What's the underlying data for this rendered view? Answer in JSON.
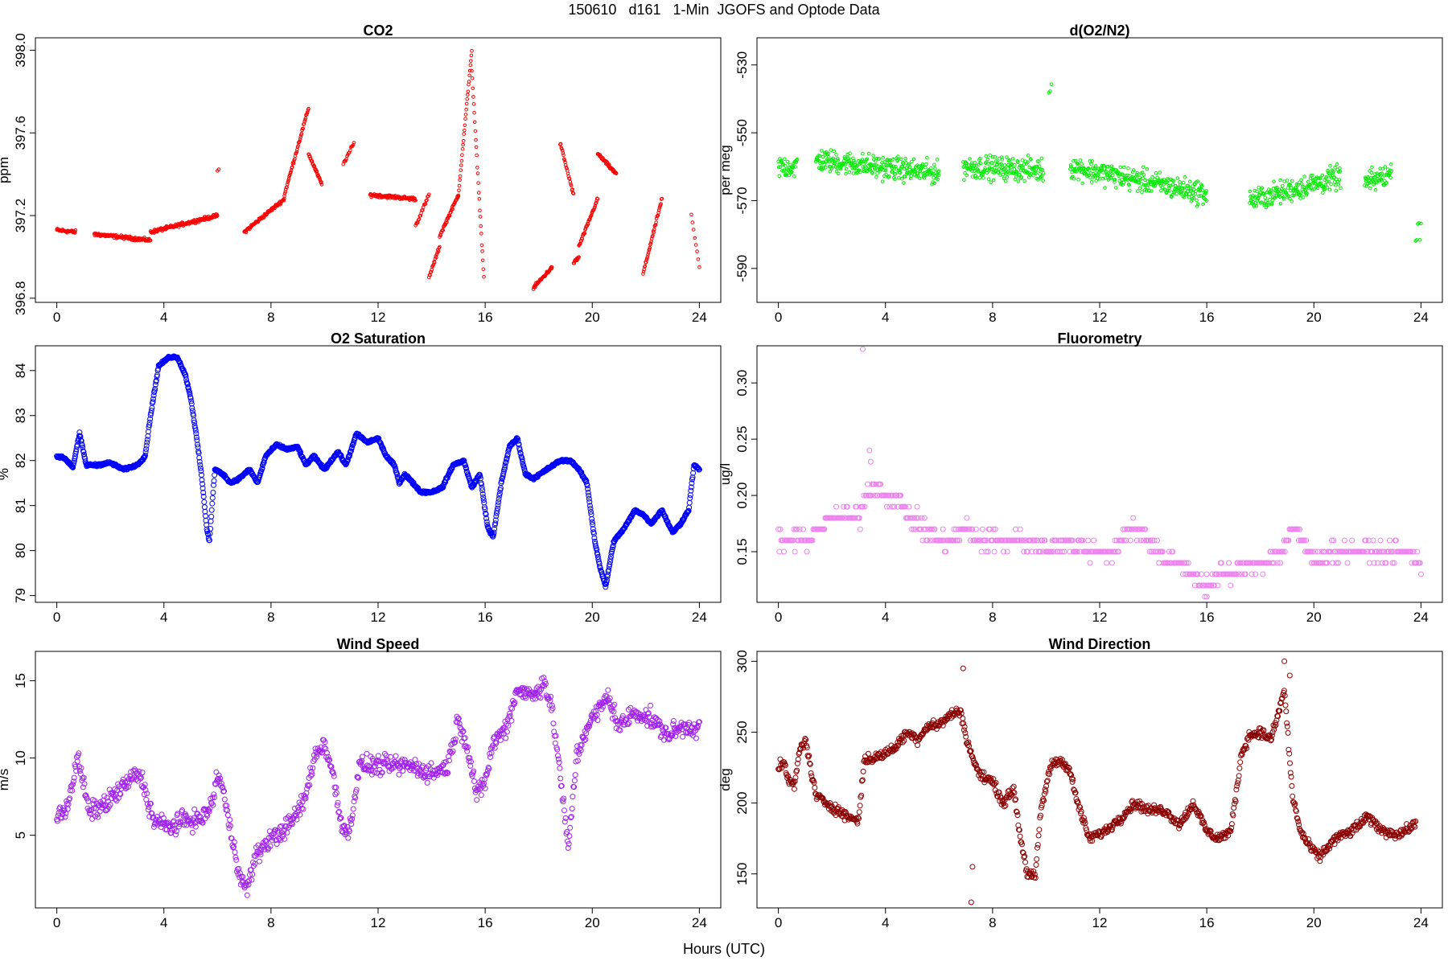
{
  "page": {
    "title": "150610   d161   1-Min  JGOFS and Optode Data",
    "xlabel": "Hours (UTC)"
  },
  "chart_data": [
    {
      "id": "co2",
      "type": "scatter",
      "title": "CO2",
      "ylabel": "ppm",
      "xlim": [
        -0.8,
        24.8
      ],
      "ylim": [
        396.78,
        398.06
      ],
      "xticks": [
        0,
        4,
        8,
        12,
        16,
        20,
        24
      ],
      "xtick_labels": [
        "0",
        "4",
        "8",
        "12",
        "16",
        "20",
        "24"
      ],
      "yticks": [
        396.8,
        397.2,
        397.6,
        398.0
      ],
      "ytick_labels": [
        "396.8",
        "397.2",
        "397.6",
        "398.0"
      ],
      "color": "#ff0000",
      "marker_r": 1.8,
      "jitter": 0.012,
      "segments": [
        {
          "x": [
            0.0,
            0.7
          ],
          "y": [
            397.13,
            397.12
          ],
          "n": 40
        },
        {
          "x": [
            1.4,
            3.5
          ],
          "y": [
            397.11,
            397.08
          ],
          "n": 120
        },
        {
          "x": [
            3.5,
            6.0
          ],
          "y": [
            397.12,
            397.2
          ],
          "n": 150
        },
        {
          "x": [
            6.0,
            6.05
          ],
          "y": [
            397.42,
            397.42
          ],
          "n": 2
        },
        {
          "x": [
            7.0,
            8.5
          ],
          "y": [
            397.12,
            397.28
          ],
          "n": 80
        },
        {
          "x": [
            8.5,
            9.4
          ],
          "y": [
            397.3,
            397.72
          ],
          "n": 50
        },
        {
          "x": [
            9.4,
            9.9
          ],
          "y": [
            397.5,
            397.35
          ],
          "n": 30
        },
        {
          "x": [
            10.7,
            11.1
          ],
          "y": [
            397.45,
            397.55
          ],
          "n": 15
        },
        {
          "x": [
            11.7,
            13.4
          ],
          "y": [
            397.3,
            397.28
          ],
          "n": 100
        },
        {
          "x": [
            13.4,
            13.9
          ],
          "y": [
            397.15,
            397.3
          ],
          "n": 20
        },
        {
          "x": [
            13.9,
            14.3
          ],
          "y": [
            396.9,
            397.05
          ],
          "n": 20
        },
        {
          "x": [
            14.3,
            15.0
          ],
          "y": [
            397.1,
            397.3
          ],
          "n": 40
        },
        {
          "x": [
            15.0,
            15.5
          ],
          "y": [
            397.3,
            398.0
          ],
          "n": 30
        },
        {
          "x": [
            15.5,
            15.95
          ],
          "y": [
            397.9,
            396.9
          ],
          "n": 25
        },
        {
          "x": [
            17.8,
            18.5
          ],
          "y": [
            396.85,
            396.95
          ],
          "n": 40
        },
        {
          "x": [
            18.8,
            19.3
          ],
          "y": [
            397.55,
            397.3
          ],
          "n": 25
        },
        {
          "x": [
            19.3,
            19.5
          ],
          "y": [
            396.97,
            397.0
          ],
          "n": 12
        },
        {
          "x": [
            19.5,
            20.2
          ],
          "y": [
            397.05,
            397.28
          ],
          "n": 40
        },
        {
          "x": [
            20.2,
            20.9
          ],
          "y": [
            397.5,
            397.4
          ],
          "n": 40
        },
        {
          "x": [
            21.9,
            22.6
          ],
          "y": [
            396.92,
            397.28
          ],
          "n": 40
        },
        {
          "x": [
            23.7,
            24.0
          ],
          "y": [
            397.2,
            396.95
          ],
          "n": 8
        }
      ]
    },
    {
      "id": "do2n2",
      "type": "scatter",
      "title": "d(O2/N2)",
      "ylabel": "per meg",
      "xlim": [
        -0.8,
        24.8
      ],
      "ylim": [
        -600,
        -522
      ],
      "xticks": [
        0,
        4,
        8,
        12,
        16,
        20,
        24
      ],
      "xtick_labels": [
        "0",
        "4",
        "8",
        "12",
        "16",
        "20",
        "24"
      ],
      "yticks": [
        -590,
        -570,
        -550,
        -530
      ],
      "ytick_labels": [
        "-590",
        "-570",
        "-550",
        "-530"
      ],
      "color": "#00ee00",
      "marker_r": 1.8,
      "jitter": 5,
      "segments": [
        {
          "x": [
            0.0,
            0.7
          ],
          "y": [
            -560,
            -560
          ],
          "n": 40
        },
        {
          "x": [
            1.4,
            6.0
          ],
          "y": [
            -558,
            -562
          ],
          "n": 280
        },
        {
          "x": [
            6.9,
            9.9
          ],
          "y": [
            -560,
            -561
          ],
          "n": 180
        },
        {
          "x": [
            10.1,
            10.2
          ],
          "y": [
            -537,
            -537
          ],
          "n": 3
        },
        {
          "x": [
            10.9,
            16.0
          ],
          "y": [
            -560,
            -568
          ],
          "n": 300
        },
        {
          "x": [
            17.6,
            21.0
          ],
          "y": [
            -570,
            -563
          ],
          "n": 200
        },
        {
          "x": [
            21.9,
            22.9
          ],
          "y": [
            -565,
            -562
          ],
          "n": 60
        },
        {
          "x": [
            23.8,
            24.0
          ],
          "y": [
            -578,
            -578
          ],
          "n": 6
        }
      ]
    },
    {
      "id": "o2sat",
      "type": "scatter",
      "title": "O2 Saturation",
      "ylabel": "%",
      "xlim": [
        -0.8,
        24.8
      ],
      "ylim": [
        78.85,
        84.55
      ],
      "xticks": [
        0,
        4,
        8,
        12,
        16,
        20,
        24
      ],
      "xtick_labels": [
        "0",
        "4",
        "8",
        "12",
        "16",
        "20",
        "24"
      ],
      "yticks": [
        79,
        80,
        81,
        82,
        83,
        84
      ],
      "ytick_labels": [
        "79",
        "80",
        "81",
        "82",
        "83",
        "84"
      ],
      "color": "#0000ff",
      "marker_r": 3,
      "jitter": 0.04,
      "path": {
        "x": [
          0.0,
          0.3,
          0.6,
          0.85,
          1.1,
          1.5,
          2.0,
          2.5,
          3.0,
          3.3,
          3.5,
          3.8,
          4.2,
          4.5,
          4.8,
          5.0,
          5.2,
          5.4,
          5.6,
          5.7,
          5.9,
          6.2,
          6.5,
          6.8,
          7.2,
          7.5,
          7.8,
          8.2,
          8.6,
          9.0,
          9.3,
          9.6,
          10.0,
          10.5,
          10.8,
          11.2,
          11.6,
          12.0,
          12.3,
          12.6,
          12.8,
          13.0,
          13.3,
          13.6,
          14.0,
          14.4,
          14.8,
          15.2,
          15.5,
          15.8,
          16.1,
          16.3,
          16.6,
          16.9,
          17.2,
          17.5,
          17.8,
          18.3,
          18.8,
          19.2,
          19.5,
          19.8,
          20.1,
          20.3,
          20.5,
          20.8,
          21.2,
          21.6,
          21.9,
          22.2,
          22.6,
          23.0,
          23.3,
          23.6,
          23.8,
          24.0
        ],
        "y": [
          82.1,
          82.05,
          81.85,
          82.6,
          81.9,
          81.9,
          81.95,
          81.8,
          81.9,
          82.1,
          83.0,
          84.1,
          84.3,
          84.3,
          83.9,
          83.4,
          82.6,
          81.7,
          80.5,
          80.2,
          81.8,
          81.7,
          81.5,
          81.6,
          81.8,
          81.5,
          82.1,
          82.35,
          82.25,
          82.3,
          81.9,
          82.1,
          81.8,
          82.2,
          81.9,
          82.6,
          82.4,
          82.5,
          82.1,
          81.9,
          81.5,
          81.7,
          81.5,
          81.3,
          81.3,
          81.4,
          81.9,
          82.0,
          81.4,
          81.7,
          80.5,
          80.3,
          81.5,
          82.3,
          82.5,
          81.7,
          81.6,
          81.8,
          82.0,
          82.0,
          81.8,
          81.5,
          80.2,
          79.6,
          79.2,
          80.2,
          80.5,
          80.9,
          80.8,
          80.6,
          80.9,
          80.4,
          80.6,
          80.9,
          81.9,
          81.8
        ],
        "n": 1440
      }
    },
    {
      "id": "fluor",
      "type": "scatter",
      "title": "Fluorometry",
      "ylabel": "ug/l",
      "xlim": [
        -0.8,
        24.8
      ],
      "ylim": [
        0.105,
        0.333
      ],
      "xticks": [
        0,
        4,
        8,
        12,
        16,
        20,
        24
      ],
      "xtick_labels": [
        "0",
        "4",
        "8",
        "12",
        "16",
        "20",
        "24"
      ],
      "yticks": [
        0.15,
        0.2,
        0.25,
        0.3
      ],
      "ytick_labels": [
        "0.15",
        "0.20",
        "0.25",
        "0.30"
      ],
      "color": "#ee82ee",
      "marker_r": 3,
      "step": 0.01,
      "path": {
        "x": [
          0.0,
          0.5,
          1.0,
          1.5,
          2.0,
          2.5,
          3.0,
          3.3,
          3.6,
          4.0,
          4.3,
          4.6,
          5.0,
          5.4,
          6.0,
          6.5,
          7.0,
          7.5,
          8.0,
          9.0,
          10.0,
          11.0,
          12.0,
          12.6,
          13.0,
          13.6,
          14.0,
          14.5,
          15.0,
          15.5,
          16.0,
          16.5,
          17.0,
          17.5,
          18.0,
          18.8,
          19.2,
          19.6,
          20.0,
          20.6,
          21.0,
          22.0,
          23.0,
          23.6,
          24.0
        ],
        "y": [
          0.16,
          0.16,
          0.16,
          0.17,
          0.18,
          0.18,
          0.18,
          0.2,
          0.21,
          0.2,
          0.2,
          0.19,
          0.18,
          0.17,
          0.16,
          0.16,
          0.17,
          0.16,
          0.16,
          0.16,
          0.155,
          0.155,
          0.15,
          0.15,
          0.17,
          0.17,
          0.155,
          0.14,
          0.14,
          0.13,
          0.12,
          0.13,
          0.13,
          0.14,
          0.14,
          0.15,
          0.17,
          0.16,
          0.14,
          0.15,
          0.15,
          0.15,
          0.15,
          0.15,
          0.14
        ],
        "n": 700,
        "jitter": 0.012
      },
      "extra": [
        {
          "x": 3.15,
          "y": 0.33
        },
        {
          "x": 3.4,
          "y": 0.24
        },
        {
          "x": 3.45,
          "y": 0.23
        },
        {
          "x": 16.0,
          "y": 0.11
        }
      ]
    },
    {
      "id": "wspd",
      "type": "scatter",
      "title": "Wind Speed",
      "ylabel": "m/s",
      "xlim": [
        -0.8,
        24.8
      ],
      "ylim": [
        0.3,
        16.9
      ],
      "xticks": [
        0,
        4,
        8,
        12,
        16,
        20,
        24
      ],
      "xtick_labels": [
        "0",
        "4",
        "8",
        "12",
        "16",
        "20",
        "24"
      ],
      "yticks": [
        5,
        10,
        15
      ],
      "ytick_labels": [
        "5",
        "10",
        "15"
      ],
      "color": "#a020f0",
      "marker_r": 3,
      "jitter": 0.9,
      "path": {
        "x": [
          0.0,
          0.4,
          0.8,
          1.2,
          1.8,
          2.4,
          3.0,
          3.2,
          3.6,
          4.2,
          4.8,
          5.4,
          5.8,
          6.0,
          6.2,
          6.4,
          6.9,
          7.1,
          7.4,
          7.8,
          8.2,
          8.6,
          9.0,
          9.3,
          9.6,
          10.0,
          10.3,
          10.6,
          10.9,
          11.3,
          11.8,
          12.5,
          13.2,
          14.0,
          14.6,
          15.0,
          15.3,
          15.7,
          16.0,
          16.3,
          16.8,
          17.2,
          17.8,
          18.2,
          18.5,
          18.8,
          19.1,
          19.4,
          19.8,
          20.2,
          20.6,
          21.0,
          21.6,
          22.2,
          22.8,
          23.4,
          24.0
        ],
        "y": [
          6.0,
          7.0,
          10.0,
          6.5,
          7.0,
          8.0,
          9.0,
          8.5,
          6.0,
          5.5,
          6.0,
          6.0,
          7.0,
          9.0,
          8.0,
          6.0,
          2.0,
          1.5,
          3.5,
          4.5,
          5.0,
          5.5,
          6.5,
          7.5,
          10.0,
          11.0,
          9.0,
          6.0,
          5.0,
          9.5,
          9.5,
          9.5,
          9.5,
          9.0,
          9.5,
          12.5,
          11.0,
          7.5,
          8.5,
          11.0,
          12.0,
          14.5,
          14.0,
          15.0,
          13.0,
          9.0,
          4.0,
          10.0,
          12.0,
          13.0,
          14.0,
          12.0,
          13.0,
          12.5,
          11.5,
          12.0,
          12.0
        ],
        "n": 1000
      }
    },
    {
      "id": "wdir",
      "type": "scatter",
      "title": "Wind Direction",
      "ylabel": "deg",
      "xlim": [
        -0.8,
        24.8
      ],
      "ylim": [
        126,
        307
      ],
      "xticks": [
        0,
        4,
        8,
        12,
        16,
        20,
        24
      ],
      "xtick_labels": [
        "0",
        "4",
        "8",
        "12",
        "16",
        "20",
        "24"
      ],
      "yticks": [
        150,
        200,
        250,
        300
      ],
      "ytick_labels": [
        "150",
        "200",
        "250",
        "300"
      ],
      "color": "#8b0000",
      "marker_r": 3,
      "jitter": 5,
      "path": {
        "x": [
          0.0,
          0.2,
          0.4,
          0.6,
          0.8,
          1.0,
          1.4,
          1.8,
          2.2,
          2.6,
          3.0,
          3.2,
          3.6,
          4.0,
          4.4,
          4.8,
          5.2,
          5.6,
          6.0,
          6.4,
          6.8,
          7.1,
          7.5,
          8.0,
          8.4,
          8.8,
          9.0,
          9.3,
          9.6,
          9.8,
          10.2,
          10.6,
          10.9,
          11.1,
          11.6,
          12.2,
          12.8,
          13.3,
          13.8,
          14.4,
          15.0,
          15.5,
          16.0,
          16.4,
          16.9,
          17.3,
          17.6,
          18.0,
          18.4,
          18.7,
          18.9,
          19.2,
          19.5,
          19.8,
          20.2,
          20.8,
          21.4,
          22.0,
          22.6,
          23.2,
          23.8
        ],
        "y": [
          225.0,
          228.0,
          215.0,
          212.0,
          238.0,
          245.0,
          205.0,
          200.0,
          195.0,
          190.0,
          188.0,
          230.0,
          232.0,
          235.0,
          240.0,
          250.0,
          245.0,
          255.0,
          255.0,
          262.0,
          265.0,
          240.0,
          220.0,
          215.0,
          200.0,
          210.0,
          180.0,
          150.0,
          148.0,
          195.0,
          228.0,
          230.0,
          222.0,
          205.0,
          175.0,
          180.0,
          190.0,
          200.0,
          195.0,
          195.0,
          185.0,
          200.0,
          180.0,
          175.0,
          180.0,
          235.0,
          248.0,
          250.0,
          245.0,
          265.0,
          280.0,
          205.0,
          180.0,
          170.0,
          162.0,
          175.0,
          180.0,
          190.0,
          180.0,
          178.0,
          185.0
        ],
        "n": 1000
      },
      "extra": [
        {
          "x": 7.2,
          "y": 130
        },
        {
          "x": 7.25,
          "y": 155
        },
        {
          "x": 6.9,
          "y": 295
        },
        {
          "x": 18.9,
          "y": 300
        },
        {
          "x": 19.1,
          "y": 290
        }
      ]
    }
  ]
}
